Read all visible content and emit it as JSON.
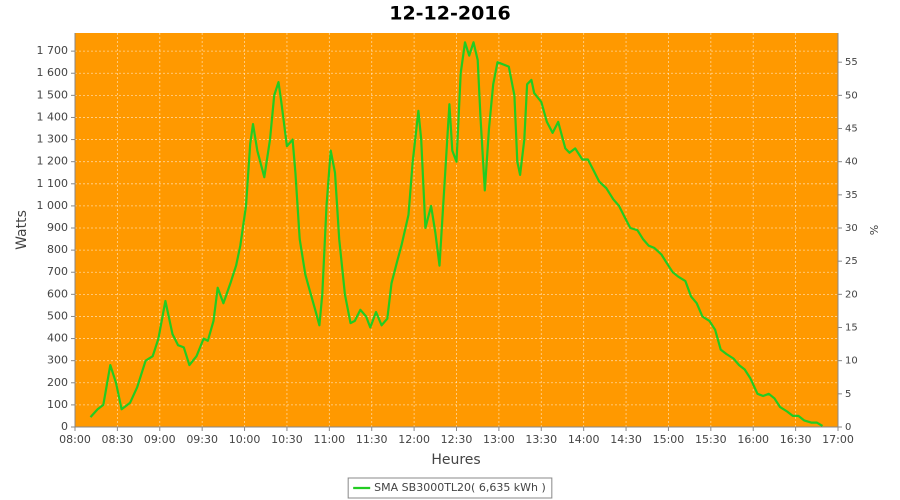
{
  "chart_data": {
    "type": "line",
    "title": "12-12-2016",
    "x_label": "Heures",
    "y_label": "Watts",
    "y2_label": "%",
    "x": [
      "08:11",
      "08:16",
      "08:20",
      "08:25",
      "08:29",
      "08:33",
      "08:39",
      "08:44",
      "08:50",
      "08:55",
      "08:59",
      "09:04",
      "09:09",
      "09:13",
      "09:17",
      "09:21",
      "09:26",
      "09:31",
      "09:34",
      "09:38",
      "09:41",
      "09:45",
      "09:50",
      "09:54",
      "09:57",
      "10:01",
      "10:04",
      "10:06",
      "10:09",
      "10:14",
      "10:18",
      "10:21",
      "10:24",
      "10:26",
      "10:30",
      "10:34",
      "10:36",
      "10:39",
      "10:43",
      "10:46",
      "10:50",
      "10:53",
      "10:55",
      "10:58",
      "11:01",
      "11:04",
      "11:07",
      "11:11",
      "11:15",
      "11:18",
      "11:22",
      "11:26",
      "11:29",
      "11:33",
      "11:37",
      "11:41",
      "11:44",
      "11:48",
      "11:51",
      "11:56",
      "11:59",
      "12:03",
      "12:05",
      "12:08",
      "12:12",
      "12:15",
      "12:18",
      "12:22",
      "12:25",
      "12:27",
      "12:30",
      "12:33",
      "12:36",
      "12:39",
      "12:42",
      "12:45",
      "12:47",
      "12:50",
      "12:53",
      "12:56",
      "12:59",
      "13:03",
      "13:07",
      "13:11",
      "13:13",
      "13:15",
      "13:18",
      "13:20",
      "13:23",
      "13:25",
      "13:30",
      "13:34",
      "13:38",
      "13:42",
      "13:47",
      "13:50",
      "13:54",
      "13:59",
      "14:03",
      "14:07",
      "14:11",
      "14:16",
      "14:21",
      "14:25",
      "14:29",
      "14:33",
      "14:38",
      "14:42",
      "14:46",
      "14:50",
      "14:55",
      "14:59",
      "15:03",
      "15:07",
      "15:12",
      "15:16",
      "15:20",
      "15:24",
      "15:29",
      "15:33",
      "15:37",
      "15:41",
      "15:46",
      "15:50",
      "15:54",
      "15:58",
      "16:03",
      "16:07",
      "16:11",
      "16:15",
      "16:19",
      "16:24",
      "16:28",
      "16:32",
      "16:36",
      "16:41",
      "16:45",
      "16:49"
    ],
    "series": [
      {
        "name": "SMA SB3000TL20( 6,635 kWh )",
        "color": "#22cc22",
        "values": [
          45,
          80,
          100,
          280,
          200,
          80,
          110,
          180,
          300,
          320,
          400,
          570,
          420,
          370,
          360,
          280,
          320,
          400,
          390,
          480,
          630,
          560,
          650,
          730,
          820,
          1000,
          1280,
          1370,
          1250,
          1130,
          1300,
          1500,
          1560,
          1470,
          1270,
          1300,
          1150,
          850,
          690,
          620,
          530,
          460,
          600,
          1000,
          1250,
          1150,
          850,
          600,
          470,
          480,
          530,
          500,
          450,
          520,
          460,
          490,
          650,
          750,
          820,
          960,
          1200,
          1430,
          1300,
          900,
          1000,
          880,
          730,
          1150,
          1460,
          1250,
          1200,
          1600,
          1740,
          1680,
          1740,
          1660,
          1400,
          1070,
          1350,
          1550,
          1650,
          1640,
          1630,
          1500,
          1200,
          1140,
          1300,
          1550,
          1570,
          1510,
          1470,
          1380,
          1330,
          1380,
          1260,
          1240,
          1260,
          1210,
          1210,
          1160,
          1110,
          1080,
          1030,
          1000,
          950,
          900,
          890,
          850,
          820,
          810,
          780,
          740,
          700,
          680,
          660,
          590,
          560,
          500,
          480,
          440,
          350,
          330,
          310,
          280,
          260,
          220,
          150,
          140,
          150,
          130,
          90,
          70,
          50,
          50,
          30,
          20,
          20,
          5
        ]
      }
    ],
    "xlim": [
      "08:00",
      "17:00"
    ],
    "xticks": [
      "08:00",
      "08:30",
      "09:00",
      "09:30",
      "10:00",
      "10:30",
      "11:00",
      "11:30",
      "12:00",
      "12:30",
      "13:00",
      "13:30",
      "14:00",
      "14:30",
      "15:00",
      "15:30",
      "16:00",
      "16:30",
      "17:00"
    ],
    "ylim": [
      0,
      1782
    ],
    "yticks": [
      0,
      100,
      200,
      300,
      400,
      500,
      600,
      700,
      800,
      900,
      {
        "value": 1000,
        "label": "1 000"
      },
      {
        "value": 1100,
        "label": "1 100"
      },
      {
        "value": 1200,
        "label": "1 200"
      },
      {
        "value": 1300,
        "label": "1 300"
      },
      {
        "value": 1400,
        "label": "1 400"
      },
      {
        "value": 1500,
        "label": "1 500"
      },
      {
        "value": 1600,
        "label": "1 600"
      },
      {
        "value": 1700,
        "label": "1 700"
      }
    ],
    "y2lim": [
      0,
      59.4
    ],
    "y2ticks": [
      0,
      5,
      10,
      15,
      20,
      25,
      30,
      35,
      40,
      45,
      50,
      55
    ],
    "grid": true,
    "plot_background": "#ff9900",
    "legend": "bottom"
  }
}
